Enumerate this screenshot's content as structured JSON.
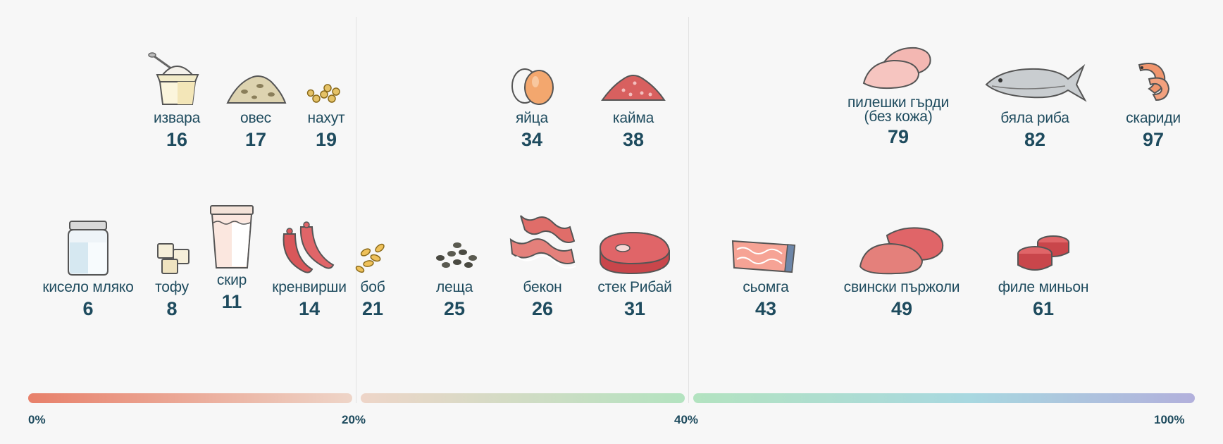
{
  "items": [
    {
      "label": "извара",
      "value": "16",
      "icon": "cottage-cheese-icon"
    },
    {
      "label": "овес",
      "value": "17",
      "icon": "oats-icon"
    },
    {
      "label": "нахут",
      "value": "19",
      "icon": "chickpeas-icon"
    },
    {
      "label": "яйца",
      "value": "34",
      "icon": "eggs-icon"
    },
    {
      "label": "кайма",
      "value": "38",
      "icon": "minced-meat-icon"
    },
    {
      "label": "пилешки гърди",
      "label2": "(без кожа)",
      "value": "79",
      "icon": "chicken-breast-icon"
    },
    {
      "label": "бяла риба",
      "value": "82",
      "icon": "white-fish-icon"
    },
    {
      "label": "скариди",
      "value": "97",
      "icon": "shrimp-icon"
    },
    {
      "label": "кисело мляко",
      "value": "6",
      "icon": "yogurt-jar-icon"
    },
    {
      "label": "тофу",
      "value": "8",
      "icon": "tofu-icon"
    },
    {
      "label": "скир",
      "value": "11",
      "icon": "skyr-cup-icon"
    },
    {
      "label": "кренвирши",
      "value": "14",
      "icon": "sausages-icon"
    },
    {
      "label": "боб",
      "value": "21",
      "icon": "beans-icon"
    },
    {
      "label": "леща",
      "value": "25",
      "icon": "lentils-icon"
    },
    {
      "label": "бекон",
      "value": "26",
      "icon": "bacon-icon"
    },
    {
      "label": "стек Рибай",
      "value": "31",
      "icon": "ribeye-steak-icon"
    },
    {
      "label": "сьомга",
      "value": "43",
      "icon": "salmon-fillet-icon"
    },
    {
      "label": "свински пържоли",
      "value": "49",
      "icon": "pork-chops-icon"
    },
    {
      "label": "филе миньон",
      "value": "61",
      "icon": "filet-mignon-icon"
    }
  ],
  "scale": {
    "ticks": [
      "0%",
      "20%",
      "40%",
      "100%"
    ],
    "colors": [
      "#e8806a",
      "#eed5c8",
      "#b3e3c0",
      "#a8dacd",
      "#b2b0dc"
    ]
  }
}
